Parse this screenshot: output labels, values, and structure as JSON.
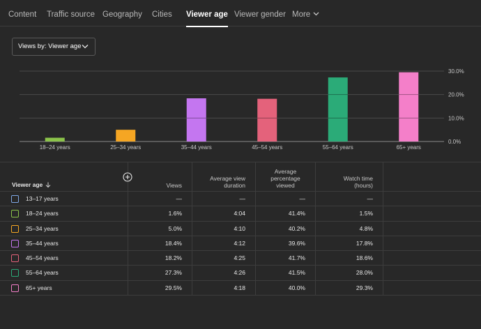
{
  "tabs": [
    {
      "label": "Content"
    },
    {
      "label": "Traffic source"
    },
    {
      "label": "Geography"
    },
    {
      "label": "Cities"
    },
    {
      "label": "Viewer age"
    },
    {
      "label": "Viewer gender"
    },
    {
      "label": "More"
    }
  ],
  "active_tab": "Viewer age",
  "dropdown": {
    "label": "Views by: Viewer age",
    "icon": "chevron-down-icon"
  },
  "chart_data": {
    "type": "bar",
    "categories": [
      "18–24 years",
      "25–34 years",
      "35–44 years",
      "45–54 years",
      "55–64 years",
      "65+ years"
    ],
    "values": [
      1.6,
      5.0,
      18.4,
      18.2,
      27.3,
      29.5
    ],
    "colors": [
      "#8bc34a",
      "#f5a623",
      "#c476f0",
      "#e4627b",
      "#2bab78",
      "#f47fc9"
    ],
    "yticks": [
      "0.0%",
      "10.0%",
      "20.0%",
      "30.0%"
    ],
    "ylim": [
      0,
      30
    ],
    "grid": true
  },
  "table": {
    "columns": [
      "Viewer age",
      "Views",
      "Average view duration",
      "Average percentage viewed",
      "Watch time (hours)"
    ],
    "header_lines": {
      "views": [
        "Views"
      ],
      "duration": [
        "Average view",
        "duration"
      ],
      "percentage": [
        "Average",
        "percentage",
        "viewed"
      ],
      "watch": [
        "Watch time",
        "(hours)"
      ]
    },
    "rows": [
      {
        "label": "13–17 years",
        "color": "#7fa7e6",
        "views": "—",
        "duration": "—",
        "percentage": "—",
        "watch": "—"
      },
      {
        "label": "18–24 years",
        "color": "#8bc34a",
        "views": "1.6%",
        "duration": "4:04",
        "percentage": "41.4%",
        "watch": "1.5%"
      },
      {
        "label": "25–34 years",
        "color": "#f5a623",
        "views": "5.0%",
        "duration": "4:10",
        "percentage": "40.2%",
        "watch": "4.8%"
      },
      {
        "label": "35–44 years",
        "color": "#c476f0",
        "views": "18.4%",
        "duration": "4:12",
        "percentage": "39.6%",
        "watch": "17.8%"
      },
      {
        "label": "45–54 years",
        "color": "#e4627b",
        "views": "18.2%",
        "duration": "4:25",
        "percentage": "41.7%",
        "watch": "18.6%"
      },
      {
        "label": "55–64 years",
        "color": "#2bab78",
        "views": "27.3%",
        "duration": "4:26",
        "percentage": "41.5%",
        "watch": "28.0%"
      },
      {
        "label": "65+ years",
        "color": "#f47fc9",
        "views": "29.5%",
        "duration": "4:18",
        "percentage": "40.0%",
        "watch": "29.3%"
      }
    ]
  }
}
